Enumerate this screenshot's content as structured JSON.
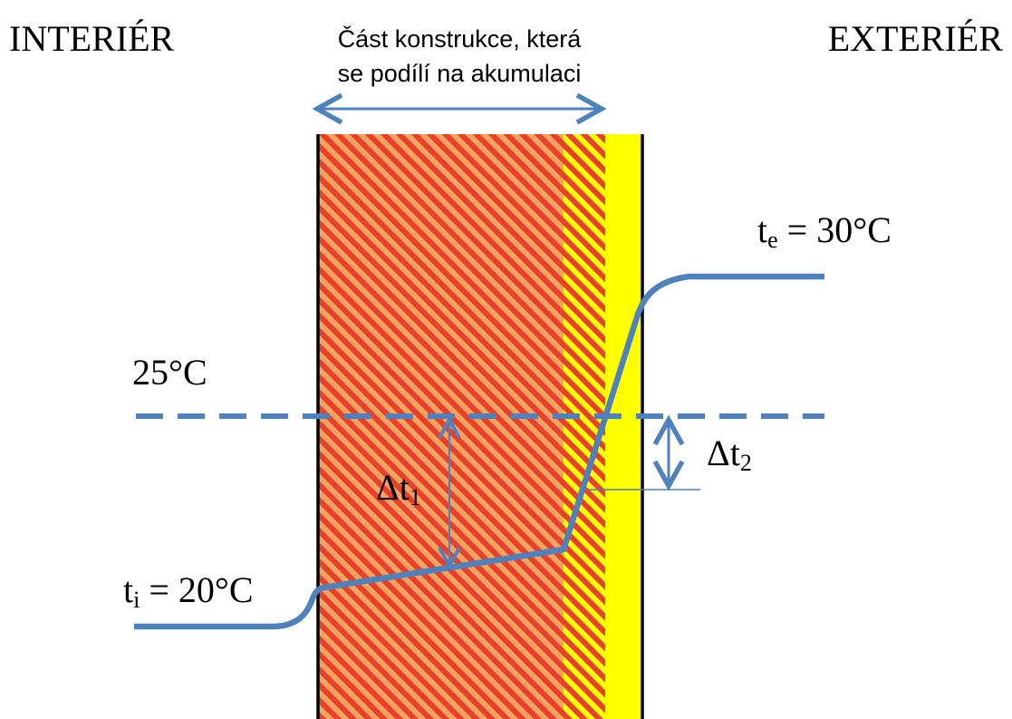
{
  "labels": {
    "interior": "INTERIÉR",
    "exterior": "EXTERIÉR",
    "accumulation_line1": "Část konstrukce, která",
    "accumulation_line2": "se podílí na akumulaci",
    "t25": "25°C",
    "ti_symbol": "t",
    "ti_sub": "i",
    "ti_value": " = 20°C",
    "te_symbol": "t",
    "te_sub": "e",
    "te_value": " = 30°C",
    "dt1_symbol": "Δt",
    "dt1_sub": "1",
    "dt2_symbol": "Δt",
    "dt2_sub": "2"
  },
  "colors": {
    "temperature_line": "#4f81bd",
    "hatch_base": "#f4a460",
    "hatch_stripe": "#e8402a",
    "insulation": "#ffff00",
    "wall_edge": "#000000"
  }
}
